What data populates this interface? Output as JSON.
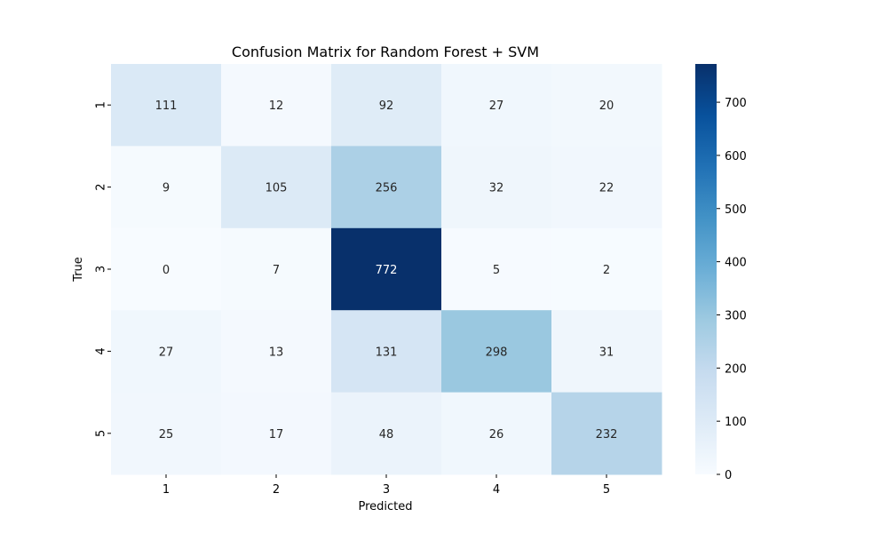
{
  "chart_data": {
    "type": "heatmap",
    "title": "Confusion Matrix for Random Forest + SVM",
    "xlabel": "Predicted",
    "ylabel": "True",
    "x_categories": [
      "1",
      "2",
      "3",
      "4",
      "5"
    ],
    "y_categories": [
      "1",
      "2",
      "3",
      "4",
      "5"
    ],
    "values": [
      [
        111,
        12,
        92,
        27,
        20
      ],
      [
        9,
        105,
        256,
        32,
        22
      ],
      [
        0,
        7,
        772,
        5,
        2
      ],
      [
        27,
        13,
        131,
        298,
        31
      ],
      [
        25,
        17,
        48,
        26,
        232
      ]
    ],
    "colormap": "Blues",
    "colorbar": {
      "min": 0,
      "max": 772,
      "ticks": [
        0,
        100,
        200,
        300,
        400,
        500,
        600,
        700
      ]
    },
    "colors": {
      "low": "#f7fbff",
      "high": "#08306b"
    }
  }
}
